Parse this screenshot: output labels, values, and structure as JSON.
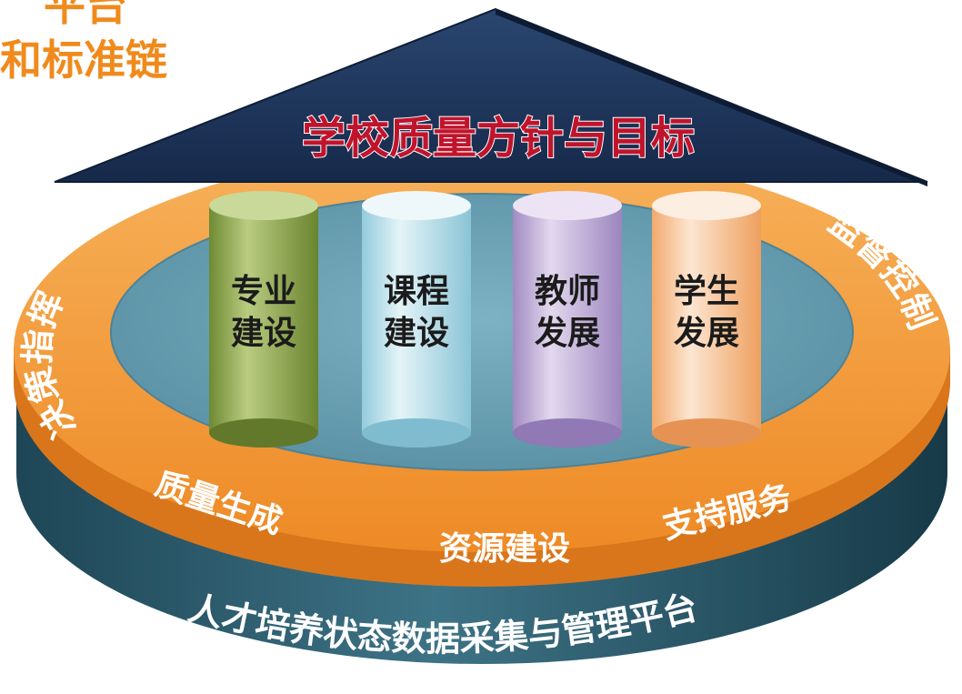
{
  "header": {
    "chain_title": "和标准链",
    "chain_title_top": "平台"
  },
  "roof": {
    "title": "学校质量方针与目标"
  },
  "pillars": [
    {
      "line1": "专业",
      "line2": "建设",
      "color": "#7f9a3e"
    },
    {
      "line1": "课程",
      "line2": "建设",
      "color": "#a9d8e6"
    },
    {
      "line1": "教师",
      "line2": "发展",
      "color": "#b6a3d0"
    },
    {
      "line1": "学生",
      "line2": "发展",
      "color": "#f4b98a"
    }
  ],
  "ring": {
    "left": "决策指挥",
    "right": "监督控制",
    "bottom_left": "质量生成",
    "bottom_center": "资源建设",
    "bottom_right": "支持服务"
  },
  "base": {
    "platform": "人才培养状态数据采集与管理平台"
  },
  "colors": {
    "roof": "#1f3558",
    "roof_text": "#c0142c",
    "ring": "#f39a3a",
    "floor": "#6fa3b6",
    "base": "#2e5e72"
  }
}
